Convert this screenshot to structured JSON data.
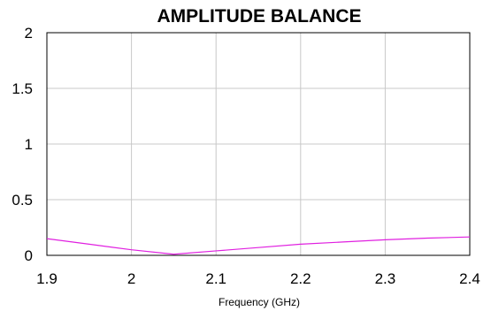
{
  "chart_data": {
    "type": "line",
    "title": "AMPLITUDE BALANCE",
    "xlabel": "Frequency (GHz)",
    "ylabel": "",
    "xlim": [
      1.9,
      2.4
    ],
    "ylim": [
      0,
      2
    ],
    "x_ticks": [
      1.9,
      2.0,
      2.1,
      2.2,
      2.3,
      2.4
    ],
    "x_tick_labels": [
      "1.9",
      "2",
      "2.1",
      "2.2",
      "2.3",
      "2.4"
    ],
    "y_ticks": [
      0,
      0.5,
      1,
      1.5,
      2
    ],
    "y_tick_labels": [
      "0",
      "0.5",
      "1",
      "1.5",
      "2"
    ],
    "grid": true,
    "legend": false,
    "series": [
      {
        "color": "#e020e0",
        "x": [
          1.9,
          1.95,
          2.0,
          2.05,
          2.1,
          2.15,
          2.2,
          2.25,
          2.3,
          2.35,
          2.4
        ],
        "y": [
          0.15,
          0.1,
          0.05,
          0.01,
          0.04,
          0.07,
          0.1,
          0.12,
          0.14,
          0.155,
          0.165
        ]
      }
    ]
  }
}
